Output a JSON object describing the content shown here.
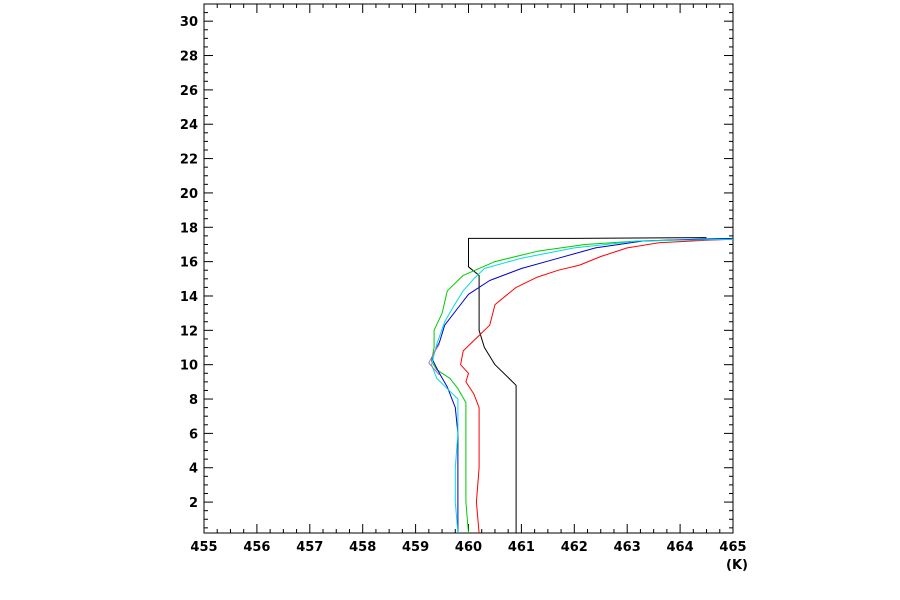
{
  "chart_data": {
    "type": "line",
    "title": "",
    "xlabel": "(K)",
    "ylabel": "",
    "xlim": [
      455,
      465
    ],
    "ylim": [
      0.2,
      31
    ],
    "grid": false,
    "x_ticks": [
      "455",
      "456",
      "457",
      "458",
      "459",
      "460",
      "461",
      "462",
      "463",
      "464",
      "465"
    ],
    "y_ticks": [
      "2",
      "4",
      "6",
      "8",
      "10",
      "12",
      "14",
      "16",
      "18",
      "20",
      "22",
      "24",
      "26",
      "28",
      "30"
    ],
    "series": [
      {
        "color": "#000000",
        "points": [
          [
            460.9,
            0.2
          ],
          [
            460.9,
            8.8
          ],
          [
            460.8,
            9.1
          ],
          [
            460.5,
            10.0
          ],
          [
            460.3,
            11.0
          ],
          [
            460.2,
            12.0
          ],
          [
            460.2,
            15.2
          ],
          [
            460.0,
            15.7
          ],
          [
            460.0,
            17.35
          ],
          [
            462.0,
            17.35
          ],
          [
            464.5,
            17.4
          ]
        ]
      },
      {
        "color": "#ff0000",
        "points": [
          [
            460.2,
            0.2
          ],
          [
            460.15,
            2.0
          ],
          [
            460.2,
            4.0
          ],
          [
            460.2,
            6.0
          ],
          [
            460.2,
            7.5
          ],
          [
            460.1,
            8.3
          ],
          [
            459.95,
            9.0
          ],
          [
            460.0,
            9.5
          ],
          [
            459.85,
            10.0
          ],
          [
            459.9,
            10.8
          ],
          [
            460.2,
            11.7
          ],
          [
            460.4,
            12.3
          ],
          [
            460.5,
            13.5
          ],
          [
            460.9,
            14.5
          ],
          [
            461.3,
            15.1
          ],
          [
            461.7,
            15.5
          ],
          [
            462.1,
            15.8
          ],
          [
            462.5,
            16.3
          ],
          [
            463.0,
            16.8
          ],
          [
            463.6,
            17.1
          ],
          [
            464.5,
            17.25
          ],
          [
            465.0,
            17.3
          ]
        ]
      },
      {
        "color": "#00cc00",
        "points": [
          [
            460.0,
            0.2
          ],
          [
            459.95,
            2.0
          ],
          [
            459.95,
            4.0
          ],
          [
            459.95,
            6.0
          ],
          [
            459.95,
            7.8
          ],
          [
            459.8,
            8.6
          ],
          [
            459.65,
            9.2
          ],
          [
            459.4,
            9.7
          ],
          [
            459.3,
            10.2
          ],
          [
            459.35,
            11.0
          ],
          [
            459.35,
            12.0
          ],
          [
            459.5,
            13.0
          ],
          [
            459.6,
            14.3
          ],
          [
            459.9,
            15.2
          ],
          [
            460.5,
            16.0
          ],
          [
            461.3,
            16.6
          ],
          [
            462.2,
            17.0
          ],
          [
            463.2,
            17.2
          ],
          [
            464.5,
            17.3
          ],
          [
            465.0,
            17.3
          ]
        ]
      },
      {
        "color": "#0000cc",
        "points": [
          [
            459.8,
            0.2
          ],
          [
            459.8,
            2.0
          ],
          [
            459.8,
            4.0
          ],
          [
            459.8,
            6.0
          ],
          [
            459.75,
            7.5
          ],
          [
            459.6,
            8.7
          ],
          [
            459.45,
            9.5
          ],
          [
            459.3,
            10.4
          ],
          [
            459.45,
            11.3
          ],
          [
            459.55,
            12.3
          ],
          [
            459.8,
            13.3
          ],
          [
            460.0,
            14.1
          ],
          [
            460.4,
            14.9
          ],
          [
            461.0,
            15.6
          ],
          [
            461.7,
            16.2
          ],
          [
            462.4,
            16.8
          ],
          [
            463.3,
            17.2
          ],
          [
            464.3,
            17.3
          ],
          [
            465.0,
            17.35
          ]
        ]
      },
      {
        "color": "#00dddd",
        "points": [
          [
            459.8,
            0.2
          ],
          [
            459.75,
            2.0
          ],
          [
            459.75,
            4.0
          ],
          [
            459.8,
            6.0
          ],
          [
            459.8,
            8.0
          ],
          [
            459.6,
            8.6
          ],
          [
            459.4,
            9.2
          ],
          [
            459.3,
            10.0
          ],
          [
            459.4,
            11.2
          ],
          [
            459.55,
            12.5
          ],
          [
            459.7,
            13.3
          ],
          [
            459.9,
            14.3
          ],
          [
            460.1,
            15.0
          ],
          [
            460.3,
            15.6
          ],
          [
            461.0,
            16.2
          ],
          [
            462.0,
            16.8
          ],
          [
            463.2,
            17.2
          ],
          [
            465.0,
            17.3
          ]
        ]
      },
      {
        "color": "#cc66cc",
        "points": [
          [
            459.45,
            9.4
          ],
          [
            459.25,
            10.1
          ],
          [
            459.35,
            10.7
          ],
          [
            459.45,
            11.2
          ]
        ]
      }
    ]
  }
}
